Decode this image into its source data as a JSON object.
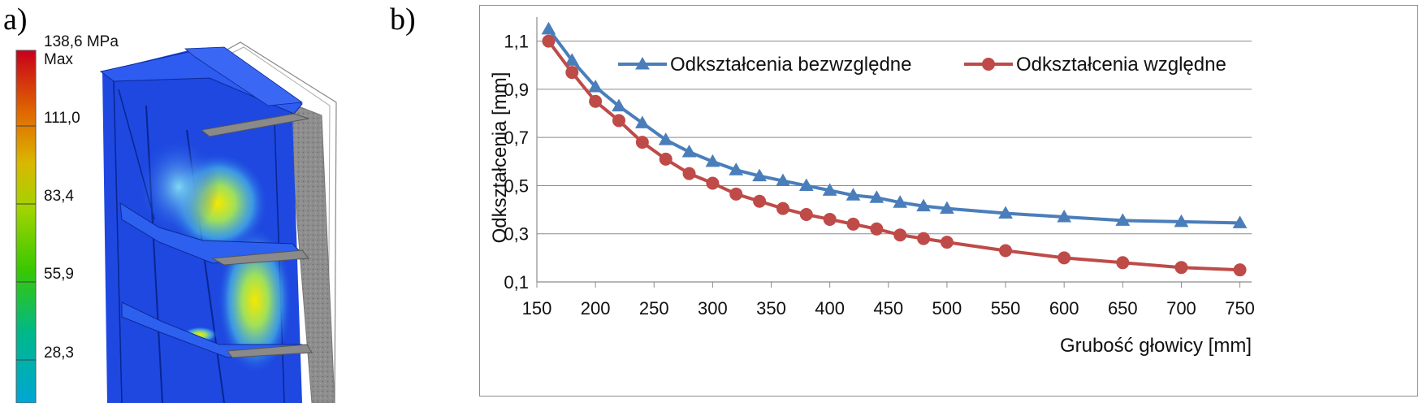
{
  "panel_a": {
    "label": "a)",
    "colorbar": {
      "top_label": "138,6 MPa",
      "max_label": "Max",
      "ticks": [
        "111,0",
        "83,4",
        "55,9",
        "28,3"
      ],
      "colors": [
        "#c8001a",
        "#e06a00",
        "#d9b800",
        "#a0d400",
        "#3ac800",
        "#00b889",
        "#00a6d6"
      ]
    }
  },
  "panel_b": {
    "label": "b)"
  },
  "chart_data": {
    "type": "line",
    "xlabel": "Grubość głowicy [mm]",
    "ylabel": "Odkształcenia  [mm]",
    "xlim": [
      150,
      760
    ],
    "ylim": [
      0.1,
      1.2
    ],
    "xticks": [
      "150",
      "200",
      "250",
      "300",
      "350",
      "400",
      "450",
      "500",
      "550",
      "600",
      "650",
      "700",
      "750"
    ],
    "yticks": [
      "0,1",
      "0,3",
      "0,5",
      "0,7",
      "0,9",
      "1,1"
    ],
    "grid": "horizontal",
    "legend": "top-right",
    "series": [
      {
        "name": "Odkształcenia bezwzględne",
        "color": "#4a7ebb",
        "marker": "triangle",
        "x": [
          160,
          180,
          200,
          220,
          240,
          260,
          280,
          300,
          320,
          340,
          360,
          380,
          400,
          420,
          440,
          460,
          480,
          500,
          550,
          600,
          650,
          700,
          750
        ],
        "y": [
          1.15,
          1.02,
          0.91,
          0.83,
          0.76,
          0.69,
          0.64,
          0.6,
          0.565,
          0.54,
          0.52,
          0.5,
          0.48,
          0.46,
          0.45,
          0.43,
          0.415,
          0.405,
          0.385,
          0.37,
          0.355,
          0.35,
          0.345
        ]
      },
      {
        "name": "Odkształcenia względne",
        "color": "#be4b48",
        "marker": "circle",
        "x": [
          160,
          180,
          200,
          220,
          240,
          260,
          280,
          300,
          320,
          340,
          360,
          380,
          400,
          420,
          440,
          460,
          480,
          500,
          550,
          600,
          650,
          700,
          750
        ],
        "y": [
          1.1,
          0.97,
          0.85,
          0.77,
          0.68,
          0.61,
          0.55,
          0.51,
          0.465,
          0.435,
          0.405,
          0.38,
          0.36,
          0.34,
          0.32,
          0.295,
          0.28,
          0.265,
          0.23,
          0.2,
          0.18,
          0.16,
          0.15
        ]
      }
    ]
  }
}
